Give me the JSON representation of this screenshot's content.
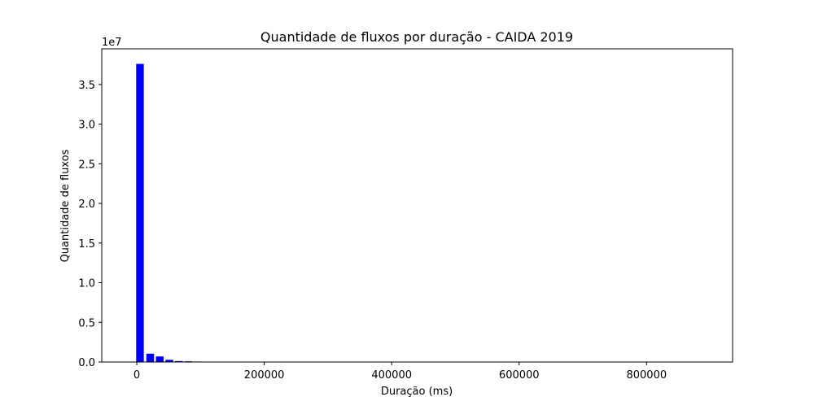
{
  "chart_data": {
    "type": "bar",
    "title": "Quantidade de fluxos por duração - CAIDA 2019",
    "xlabel": "Duração (ms)",
    "ylabel": "Quantidade de fluxos",
    "y_offset_label": "1e7",
    "xlim": [
      -55000,
      935000
    ],
    "ylim": [
      0,
      39500000
    ],
    "x_ticks": [
      0,
      200000,
      400000,
      600000,
      800000
    ],
    "x_tick_labels": [
      "0",
      "200000",
      "400000",
      "600000",
      "800000"
    ],
    "y_ticks": [
      0,
      5000000,
      10000000,
      15000000,
      20000000,
      25000000,
      30000000,
      35000000
    ],
    "y_tick_labels": [
      "0.0",
      "0.5",
      "1.0",
      "1.5",
      "2.0",
      "2.5",
      "3.0",
      "3.5"
    ],
    "grid": false,
    "bar_color": "#0000ff",
    "bar_width": 12000,
    "bars": [
      {
        "x": 5000,
        "value": 37600000
      },
      {
        "x": 21000,
        "value": 1050000
      },
      {
        "x": 36000,
        "value": 700000
      },
      {
        "x": 51000,
        "value": 280000
      },
      {
        "x": 66000,
        "value": 120000
      },
      {
        "x": 81000,
        "value": 90000
      },
      {
        "x": 96000,
        "value": 60000
      }
    ]
  }
}
